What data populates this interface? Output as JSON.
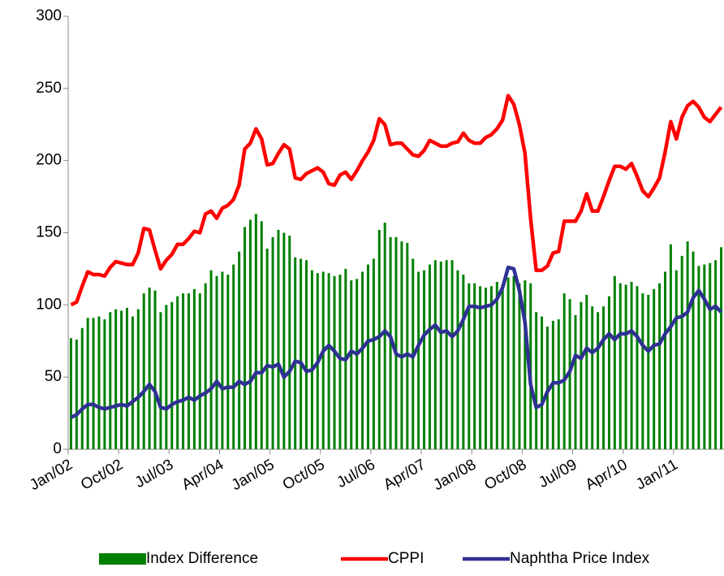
{
  "chart_data": {
    "type": "bar-line",
    "categories": [
      "Jan/02",
      null,
      null,
      null,
      null,
      null,
      null,
      null,
      null,
      "Oct/02",
      null,
      null,
      null,
      null,
      null,
      null,
      null,
      null,
      "Jul/03",
      null,
      null,
      null,
      null,
      null,
      null,
      null,
      null,
      "Apr/04",
      null,
      null,
      null,
      null,
      null,
      null,
      null,
      null,
      "Jan/05",
      null,
      null,
      null,
      null,
      null,
      null,
      null,
      null,
      "Oct/05",
      null,
      null,
      null,
      null,
      null,
      null,
      null,
      null,
      "Jul/06",
      null,
      null,
      null,
      null,
      null,
      null,
      null,
      null,
      "Apr/07",
      null,
      null,
      null,
      null,
      null,
      null,
      null,
      null,
      "Jan/08",
      null,
      null,
      null,
      null,
      null,
      null,
      null,
      null,
      "Oct/08",
      null,
      null,
      null,
      null,
      null,
      null,
      null,
      null,
      "Jul/09",
      null,
      null,
      null,
      null,
      null,
      null,
      null,
      null,
      "Apr/10",
      null,
      null,
      null,
      null,
      null,
      null,
      null,
      null,
      "Jan/11",
      null,
      null,
      null,
      null,
      null,
      null,
      null,
      null
    ],
    "series": [
      {
        "name": "Index Difference",
        "kind": "bar",
        "color": "#008000",
        "values": [
          77,
          76,
          84,
          91,
          91,
          92,
          90,
          95,
          97,
          96,
          98,
          92,
          97,
          108,
          112,
          110,
          95,
          100,
          102,
          106,
          108,
          108,
          111,
          108,
          115,
          124,
          120,
          123,
          121,
          128,
          137,
          154,
          159,
          163,
          158,
          139,
          147,
          152,
          150,
          148,
          133,
          132,
          131,
          124,
          122,
          123,
          122,
          120,
          121,
          125,
          117,
          118,
          123,
          128,
          132,
          152,
          157,
          147,
          147,
          144,
          143,
          132,
          123,
          124,
          128,
          131,
          130,
          131,
          131,
          124,
          121,
          115,
          115,
          113,
          112,
          113,
          116,
          114,
          119,
          120,
          115,
          117,
          115,
          95,
          92,
          85,
          89,
          90,
          108,
          104,
          93,
          102,
          107,
          99,
          95,
          99,
          106,
          120,
          115,
          114,
          116,
          113,
          108,
          107,
          111,
          115,
          123,
          142,
          124,
          134,
          144,
          137,
          127,
          128,
          129,
          131,
          140
        ]
      },
      {
        "name": "CPPI",
        "kind": "line",
        "color": "#ff0000",
        "values": [
          100,
          102,
          113,
          123,
          121,
          121,
          120,
          126,
          130,
          129,
          128,
          128,
          136,
          153,
          152,
          138,
          125,
          131,
          135,
          142,
          142,
          146,
          151,
          150,
          163,
          165,
          160,
          167,
          169,
          173,
          183,
          208,
          212,
          222,
          215,
          197,
          198,
          205,
          211,
          208,
          188,
          187,
          191,
          193,
          195,
          192,
          184,
          183,
          190,
          192,
          187,
          193,
          200,
          206,
          214,
          229,
          225,
          211,
          212,
          212,
          208,
          204,
          203,
          207,
          214,
          212,
          210,
          210,
          212,
          213,
          219,
          214,
          212,
          212,
          216,
          218,
          222,
          228,
          245,
          239,
          225,
          205,
          160,
          124,
          124,
          127,
          136,
          137,
          158,
          158,
          158,
          165,
          177,
          165,
          165,
          175,
          186,
          196,
          196,
          194,
          198,
          189,
          179,
          175,
          181,
          188,
          206,
          227,
          215,
          230,
          238,
          241,
          237,
          230,
          227,
          232,
          237
        ]
      },
      {
        "name": "Naphtha Price Index",
        "kind": "line",
        "color": "#2e3192",
        "values": [
          22,
          24,
          28,
          31,
          31,
          29,
          28,
          29,
          30,
          31,
          30,
          33,
          36,
          40,
          45,
          40,
          29,
          28,
          31,
          33,
          34,
          36,
          34,
          37,
          39,
          42,
          47,
          42,
          43,
          43,
          47,
          45,
          47,
          53,
          53,
          58,
          57,
          59,
          50,
          54,
          61,
          60,
          54,
          55,
          60,
          68,
          72,
          68,
          63,
          62,
          68,
          66,
          70,
          75,
          76,
          78,
          82,
          78,
          66,
          64,
          66,
          64,
          72,
          79,
          83,
          86,
          81,
          82,
          78,
          82,
          90,
          99,
          99,
          98,
          99,
          100,
          104,
          112,
          126,
          125,
          110,
          88,
          45,
          29,
          31,
          40,
          46,
          46,
          48,
          54,
          65,
          63,
          70,
          67,
          70,
          76,
          80,
          76,
          80,
          80,
          82,
          78,
          72,
          68,
          72,
          73,
          80,
          85,
          91,
          92,
          95,
          105,
          110,
          104,
          97,
          99,
          95
        ]
      }
    ],
    "ylim": [
      0,
      300
    ],
    "yticks": [
      0,
      50,
      100,
      150,
      200,
      250,
      300
    ],
    "legend": "bottom"
  }
}
